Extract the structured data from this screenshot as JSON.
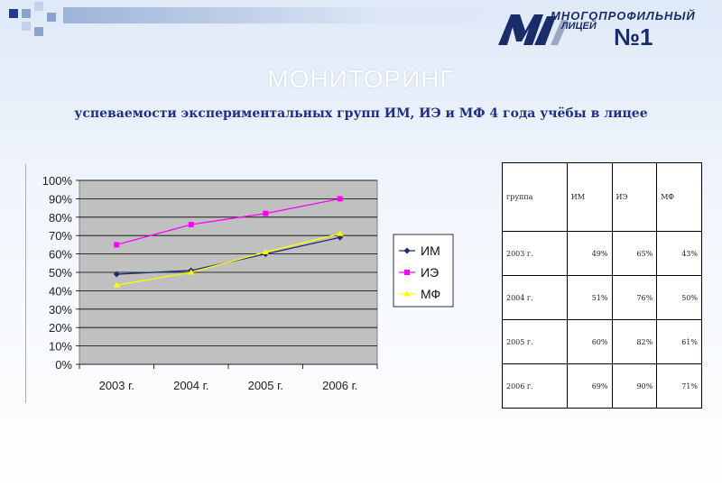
{
  "logo": {
    "line1": "МНОГОПРОФИЛЬНЫЙ",
    "line2": "ЛИЦЕЙ",
    "line3": "№1"
  },
  "slide": {
    "title": "МОНИТОРИНГ",
    "subtitle": "успеваемости экспериментальных групп ИМ, ИЭ и МФ 4 года учёбы в лицее"
  },
  "colors": {
    "plot_bg": "#c0c0c0",
    "im": "#1f2f6b",
    "ie": "#ff00ff",
    "mf": "#ffff00",
    "squares": [
      "#1f3d8a",
      "#8aa2cf",
      "#c4d1ea"
    ]
  },
  "chart_data": {
    "type": "line",
    "categories": [
      "2003 г.",
      "2004 г.",
      "2005 г.",
      "2006 г."
    ],
    "y_ticks": [
      "0%",
      "10%",
      "20%",
      "30%",
      "40%",
      "50%",
      "60%",
      "70%",
      "80%",
      "90%",
      "100%"
    ],
    "ylim": [
      0,
      100
    ],
    "grid": true,
    "legend_position": "right",
    "series": [
      {
        "name": "ИМ",
        "values": [
          49,
          51,
          60,
          69
        ],
        "marker": "diamond"
      },
      {
        "name": "ИЭ",
        "values": [
          65,
          76,
          82,
          90
        ],
        "marker": "square"
      },
      {
        "name": "МФ",
        "values": [
          43,
          50,
          61,
          71
        ],
        "marker": "triangle"
      }
    ]
  },
  "table": {
    "header": [
      "группа",
      "ИМ",
      "ИЭ",
      "МФ"
    ],
    "rows": [
      [
        "2003 г.",
        "49%",
        "65%",
        "43%"
      ],
      [
        "2004 г.",
        "51%",
        "76%",
        "50%"
      ],
      [
        "2005 г.",
        "60%",
        "82%",
        "61%"
      ],
      [
        "2006 г.",
        "69%",
        "90%",
        "71%"
      ]
    ]
  }
}
